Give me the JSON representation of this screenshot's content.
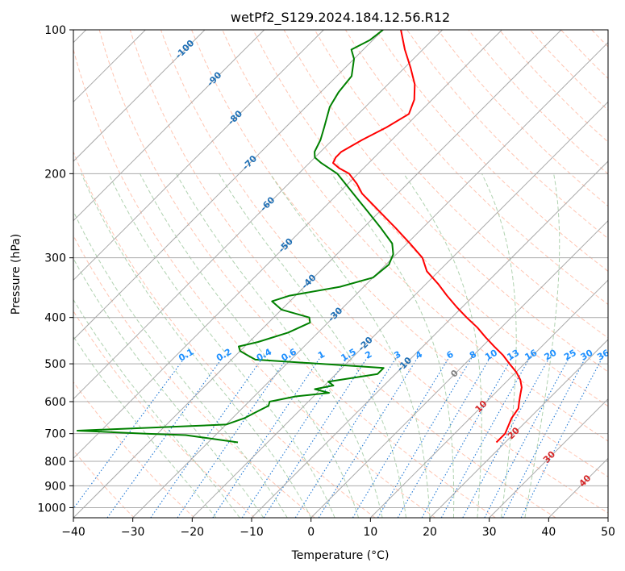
{
  "chart_data": {
    "type": "line",
    "title": "wetPf2_S129.2024.184.12.56.R12",
    "xlabel": "Temperature (°C)",
    "ylabel": "Pressure (hPa)",
    "xlim": [
      -40,
      50
    ],
    "ylim": [
      1050,
      100
    ],
    "y_scale": "log",
    "skew": "skew-T log-p",
    "grid": true,
    "x_ticks": [
      -40,
      -30,
      -20,
      -10,
      0,
      10,
      20,
      30,
      40,
      50
    ],
    "x_tick_labels": [
      "−40",
      "−30",
      "−20",
      "−10",
      "0",
      "10",
      "20",
      "30",
      "40",
      "50"
    ],
    "y_ticks": [
      1000,
      900,
      800,
      700,
      600,
      500,
      400,
      300,
      200,
      100
    ],
    "y_tick_labels": [
      "1000",
      "900",
      "800",
      "700",
      "600",
      "500",
      "400",
      "300",
      "200",
      "100"
    ],
    "colors": {
      "temperature": "#ff0000",
      "dewpoint": "#008000",
      "isotherm": "#a9a9a9",
      "dry_adiabat": "#ff9f7f",
      "moist_adiabat": "#8fbf8f",
      "mixing_ratio": "#1f77d4",
      "isotherm_label": "#1f6fb5",
      "dry_adiabat_label": "#d62728",
      "moist_adiabat_label": "#808080",
      "mixing_ratio_label": "#1e90ff"
    },
    "series": [
      {
        "key": "temperature",
        "pressure": [
          730,
          700,
          650,
          620,
          600,
          580,
          560,
          540,
          520,
          500,
          480,
          460,
          440,
          420,
          400,
          380,
          360,
          340,
          320,
          300,
          280,
          260,
          240,
          220,
          210,
          200,
          195,
          190,
          185,
          180,
          170,
          160,
          150,
          140,
          130,
          120,
          110,
          100
        ],
        "temp": [
          18.5,
          18.5,
          17,
          16.5,
          15.5,
          14.5,
          13.5,
          12,
          10,
          7.5,
          5,
          2,
          -1,
          -4,
          -7.5,
          -11,
          -14.5,
          -18,
          -22,
          -25,
          -29.5,
          -34.5,
          -40,
          -46,
          -48.5,
          -51.5,
          -54,
          -56,
          -56.5,
          -56.5,
          -55,
          -53,
          -51.5,
          -53,
          -55.5,
          -59,
          -63,
          -67
        ]
      },
      {
        "key": "dewpoint",
        "pressure": [
          730,
          720,
          705,
          700,
          690,
          670,
          650,
          630,
          612,
          600,
          585,
          575,
          565,
          555,
          545,
          525,
          510,
          502,
          490,
          480,
          470,
          460,
          450,
          430,
          410,
          400,
          385,
          370,
          360,
          345,
          330,
          310,
          295,
          280,
          260,
          240,
          220,
          200,
          190,
          185,
          180,
          170,
          160,
          145,
          135,
          125,
          115,
          110,
          105,
          100
        ],
        "temp": [
          -25,
          -29,
          -35,
          -42,
          -54,
          -30,
          -28,
          -27,
          -26,
          -26.5,
          -23,
          -18,
          -21,
          -18.5,
          -20,
          -13,
          -13,
          -22,
          -36,
          -38,
          -40,
          -41,
          -38.5,
          -35,
          -33,
          -34,
          -40,
          -43,
          -41,
          -34,
          -30,
          -29.5,
          -30.5,
          -32.5,
          -37,
          -42,
          -47.5,
          -53.5,
          -58,
          -60,
          -61,
          -62,
          -63.5,
          -66,
          -67,
          -67.5,
          -70,
          -72,
          -70.5,
          -70
        ]
      }
    ],
    "isotherm_labels": [
      "-100",
      "-90",
      "-80",
      "-70",
      "-60",
      "-50",
      "-40",
      "-30",
      "-20",
      "-10",
      "0",
      "10",
      "20",
      "30",
      "40"
    ],
    "isotherm_label_values": [
      -100,
      -90,
      -80,
      -70,
      -60,
      -50,
      -40,
      -30,
      -20,
      -10,
      0,
      10,
      20,
      30,
      40
    ],
    "isotherm_label_pressures": [
      110,
      127,
      153,
      190,
      232,
      283,
      337,
      395,
      455,
      502,
      525,
      615,
      700,
      785,
      880
    ],
    "mixing_ratio_values": [
      0.1,
      0.2,
      0.4,
      0.6,
      1,
      1.5,
      2,
      3,
      4,
      6,
      8,
      10,
      13,
      16,
      20,
      25,
      30,
      36
    ],
    "mixing_ratio_labels": [
      "0.1",
      "0.2",
      "0.4",
      "0.6",
      "1",
      "1.5",
      "2",
      "3",
      "4",
      "6",
      "8",
      "10",
      "13",
      "16",
      "20",
      "25",
      "30",
      "36"
    ],
    "mixing_ratio_label_pressure": 480,
    "dry_adiabat_thetas_K": [
      220,
      230,
      240,
      250,
      260,
      270,
      280,
      290,
      300,
      310,
      320,
      330,
      340,
      350,
      360,
      370,
      380,
      390,
      400,
      410,
      420,
      430,
      440,
      450,
      460,
      480,
      500,
      520,
      540
    ],
    "moist_adiabat_start_C": [
      -16,
      -12,
      -8,
      -4,
      0,
      4,
      8,
      12,
      16,
      20,
      24,
      28,
      32,
      36
    ]
  }
}
